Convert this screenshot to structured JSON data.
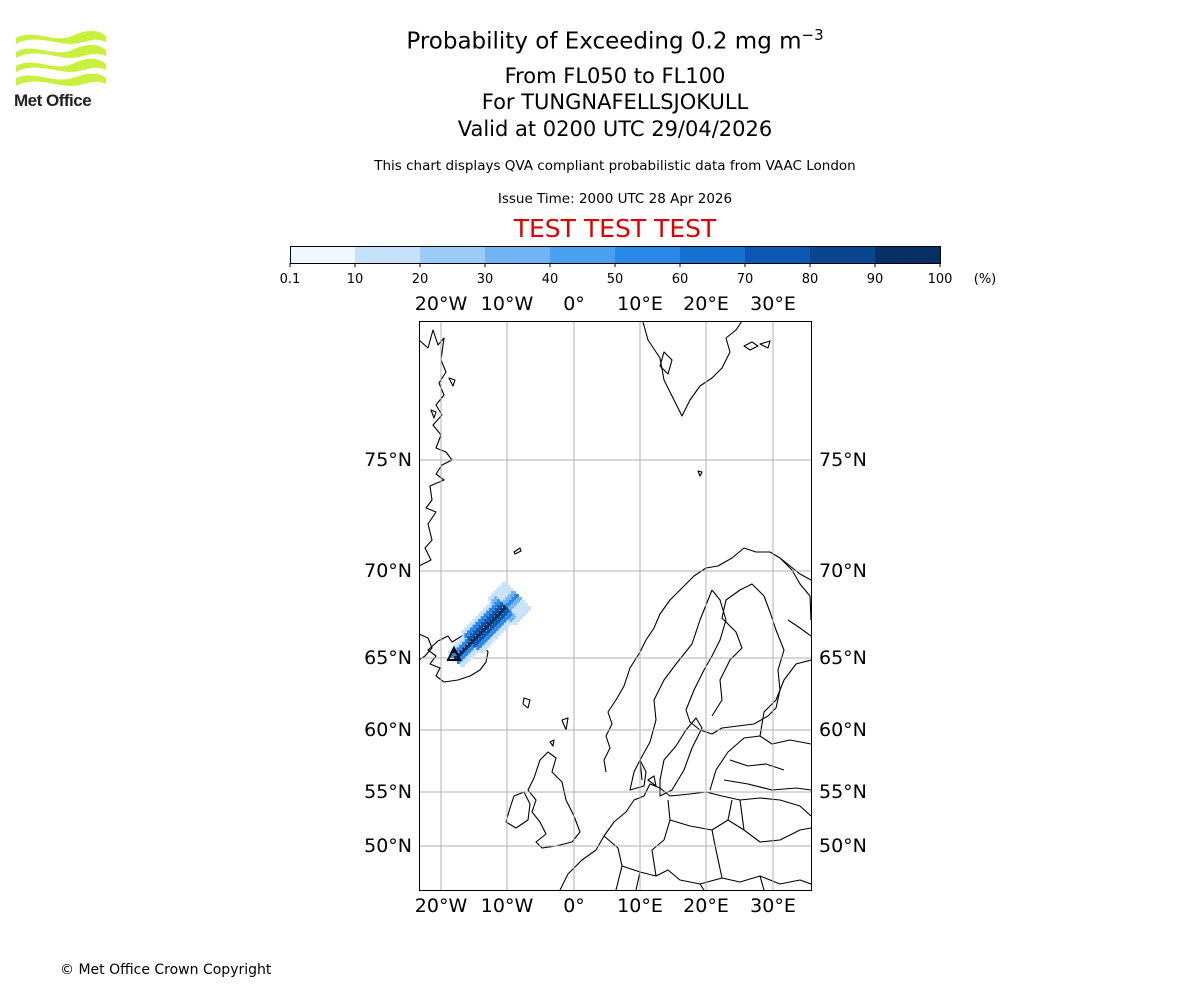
{
  "header": {
    "title_prefix": "Probability of Exceeding 0.2 mg m",
    "title_exponent": "−3",
    "line2": "From FL050 to FL100",
    "line3": "For TUNGNAFELLSJOKULL",
    "line4": "Valid at 0200 UTC 29/04/2026",
    "subtitle": "This chart displays QVA compliant probabilistic data from VAAC London",
    "issue_time": "Issue Time: 2000 UTC 28 Apr 2026",
    "test_banner": "TEST TEST TEST",
    "test_color": "#e00000"
  },
  "logo": {
    "text": "Met Office",
    "wave_color": "#c8f03c"
  },
  "colorbar": {
    "ticks": [
      "0.1",
      "10",
      "20",
      "30",
      "40",
      "50",
      "60",
      "70",
      "80",
      "90",
      "100"
    ],
    "unit": "(%)",
    "colors": [
      "#f0f7ff",
      "#c6e2fb",
      "#9ccbf7",
      "#72b4f3",
      "#4aa0ef",
      "#2a88e8",
      "#1570d0",
      "#0c58b0",
      "#08458f",
      "#082f62"
    ]
  },
  "map": {
    "lon_labels": [
      "20°W",
      "10°W",
      "0°",
      "10°E",
      "20°E",
      "30°E"
    ],
    "lat_labels": [
      "75°N",
      "70°N",
      "65°N",
      "60°N",
      "55°N",
      "50°N"
    ],
    "land_color": "#ffffff",
    "plume_colors": [
      "#082f62",
      "#0c58b0",
      "#2a88e8",
      "#72b4f3",
      "#c6e2fb"
    ]
  },
  "footer": {
    "copyright": "© Met Office Crown Copyright"
  }
}
